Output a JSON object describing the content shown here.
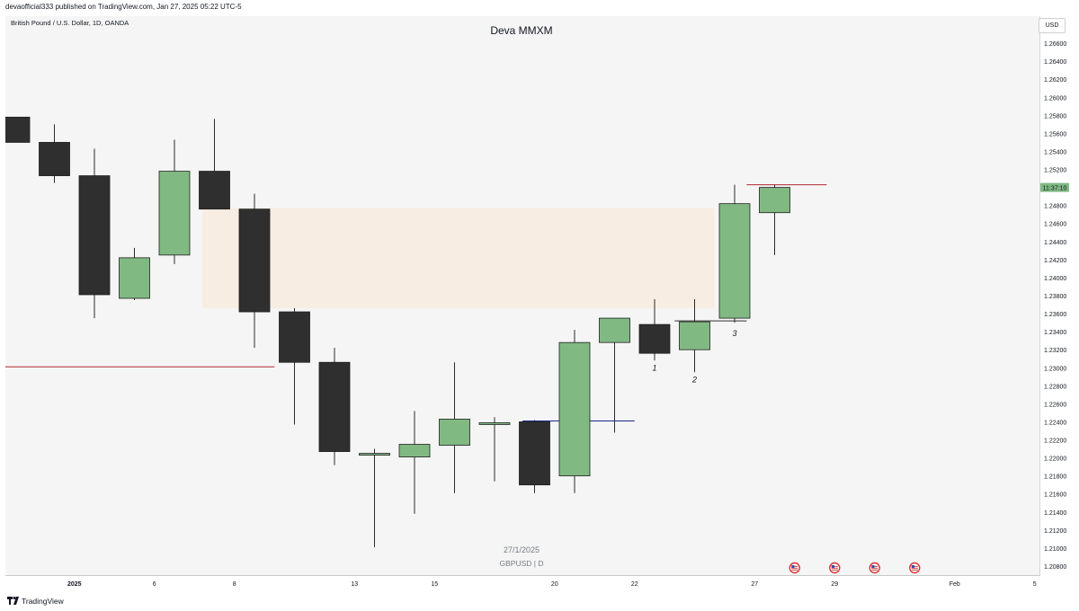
{
  "header": {
    "published_text": "devaofficial333 published on TradingView.com, Jan 27, 2025 05:22 UTC-5",
    "symbol_text": "British Pound / U.S. Dollar, 1D, OANDA",
    "currency_button": "USD"
  },
  "watermark": {
    "date": "27/1/2025",
    "symbol": "GBPUSD | D"
  },
  "footer": {
    "brand": "TradingView"
  },
  "colors": {
    "bull": "#81b983",
    "bear": "#2f2f2f",
    "zone": "#f7ede2",
    "level_red": "#b22833",
    "level_blue": "#1a2a8c",
    "price_tag": "#81b983"
  },
  "chart_data": {
    "type": "candlestick",
    "title": "Deva MMXM",
    "ylim": [
      1.207,
      1.269
    ],
    "y_ticks": [
      "1.26600",
      "1.26400",
      "1.26200",
      "1.26000",
      "1.25800",
      "1.25600",
      "1.25400",
      "1.25200",
      "1.25000",
      "1.24800",
      "1.24600",
      "1.24400",
      "1.24200",
      "1.24000",
      "1.23800",
      "1.23600",
      "1.23400",
      "1.23200",
      "1.23000",
      "1.22800",
      "1.22600",
      "1.22400",
      "1.22200",
      "1.22000",
      "1.21800",
      "1.21600",
      "1.21400",
      "1.21200",
      "1.21000",
      "1.20800"
    ],
    "x_ticks": [
      {
        "label": "2025",
        "slot": 1.5
      },
      {
        "label": "6",
        "slot": 3.5
      },
      {
        "label": "8",
        "slot": 5.5
      },
      {
        "label": "13",
        "slot": 8.5
      },
      {
        "label": "15",
        "slot": 10.5
      },
      {
        "label": "20",
        "slot": 13.5
      },
      {
        "label": "22",
        "slot": 15.5
      },
      {
        "label": "27",
        "slot": 18.5
      },
      {
        "label": "29",
        "slot": 20.5
      },
      {
        "label": "Feb",
        "slot": 23.5
      },
      {
        "label": "5",
        "slot": 25.5
      }
    ],
    "candles": [
      {
        "o": 1.2578,
        "h": 1.2578,
        "l": 1.255,
        "c": 1.255
      },
      {
        "o": 1.255,
        "h": 1.257,
        "l": 1.2505,
        "c": 1.2513
      },
      {
        "o": 1.2513,
        "h": 1.2543,
        "l": 1.2355,
        "c": 1.2381
      },
      {
        "o": 1.2377,
        "h": 1.2433,
        "l": 1.2375,
        "c": 1.2422
      },
      {
        "o": 1.2425,
        "h": 1.2553,
        "l": 1.2415,
        "c": 1.2518
      },
      {
        "o": 1.2518,
        "h": 1.2576,
        "l": 1.2476,
        "c": 1.2476
      },
      {
        "o": 1.2476,
        "h": 1.2493,
        "l": 1.2322,
        "c": 1.2362
      },
      {
        "o": 1.2362,
        "h": 1.2366,
        "l": 1.2237,
        "c": 1.2306
      },
      {
        "o": 1.2306,
        "h": 1.2322,
        "l": 1.2192,
        "c": 1.2207
      },
      {
        "o": 1.2203,
        "h": 1.221,
        "l": 1.2101,
        "c": 1.2205
      },
      {
        "o": 1.2201,
        "h": 1.2252,
        "l": 1.2138,
        "c": 1.2215
      },
      {
        "o": 1.2214,
        "h": 1.2306,
        "l": 1.2161,
        "c": 1.2243
      },
      {
        "o": 1.2237,
        "h": 1.2245,
        "l": 1.2174,
        "c": 1.2239
      },
      {
        "o": 1.224,
        "h": 1.2242,
        "l": 1.2161,
        "c": 1.217
      },
      {
        "o": 1.218,
        "h": 1.2342,
        "l": 1.2161,
        "c": 1.2328
      },
      {
        "o": 1.2328,
        "h": 1.2355,
        "l": 1.2228,
        "c": 1.2355
      },
      {
        "o": 1.2348,
        "h": 1.2376,
        "l": 1.2308,
        "c": 1.2316
      },
      {
        "o": 1.232,
        "h": 1.2376,
        "l": 1.2295,
        "c": 1.2351
      },
      {
        "o": 1.2355,
        "h": 1.2503,
        "l": 1.235,
        "c": 1.2482
      },
      {
        "o": 1.2472,
        "h": 1.2503,
        "l": 1.2425,
        "c": 1.25
      }
    ],
    "zones": [
      {
        "from_slot": 4.7,
        "to_slot": 17.5,
        "top": 1.2477,
        "bottom": 1.2366
      }
    ],
    "levels": [
      {
        "price": 1.2301,
        "from_slot": -0.5,
        "to_slot": 6.5,
        "color": "level_red"
      },
      {
        "price": 1.2241,
        "from_slot": 12.7,
        "to_slot": 15.5,
        "color": "level_blue"
      },
      {
        "price": 1.2352,
        "from_slot": 16.5,
        "to_slot": 18.3,
        "color": "level_dark"
      },
      {
        "price": 1.2503,
        "from_slot": 18.3,
        "to_slot": 20.3,
        "color": "level_red"
      }
    ],
    "annotations": [
      {
        "text": "1",
        "slot": 16,
        "price": 1.2297
      },
      {
        "text": "2",
        "slot": 17,
        "price": 1.2284
      },
      {
        "text": "3",
        "slot": 18,
        "price": 1.2335
      }
    ],
    "last_price_label": "11:37:10",
    "last_price": 1.25,
    "event_icons_slots": [
      19.5,
      20.5,
      21.5,
      22.5
    ]
  }
}
